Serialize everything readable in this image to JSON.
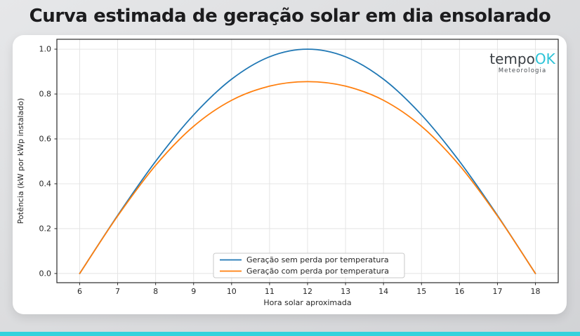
{
  "page": {
    "title": "Curva estimada de geração solar em dia ensolarado",
    "accent_bar_color": "#35d2dc"
  },
  "logo": {
    "brand_prefix": "tempo",
    "brand_suffix": "OK",
    "suffix_color": "#2cc3d7",
    "subtitle": "Meteorologia"
  },
  "chart_data": {
    "type": "line",
    "title": "",
    "xlabel": "Hora solar aproximada",
    "ylabel": "Potência (kW por kWp instalado)",
    "x": [
      6,
      7,
      8,
      9,
      10,
      11,
      12,
      13,
      14,
      15,
      16,
      17,
      18
    ],
    "series": [
      {
        "name": "Geração sem perda por temperatura",
        "color": "#1f77b4",
        "values": [
          0,
          0.259,
          0.5,
          0.707,
          0.866,
          0.966,
          1.0,
          0.966,
          0.866,
          0.707,
          0.5,
          0.259,
          0
        ]
      },
      {
        "name": "Geração com perda por temperatura",
        "color": "#ff7f0e",
        "values": [
          0,
          0.256,
          0.482,
          0.656,
          0.772,
          0.835,
          0.855,
          0.835,
          0.772,
          0.656,
          0.482,
          0.256,
          0
        ]
      }
    ],
    "xticks": [
      6,
      7,
      8,
      9,
      10,
      11,
      12,
      13,
      14,
      15,
      16,
      17,
      18
    ],
    "yticks": [
      0.0,
      0.2,
      0.4,
      0.6,
      0.8,
      1.0
    ],
    "xlim": [
      5.4,
      18.6
    ],
    "ylim": [
      -0.041,
      1.044
    ],
    "grid": true,
    "grid_color": "#e4e4e4",
    "spine_color": "#2a2a2a",
    "legend_position": "lower center"
  }
}
